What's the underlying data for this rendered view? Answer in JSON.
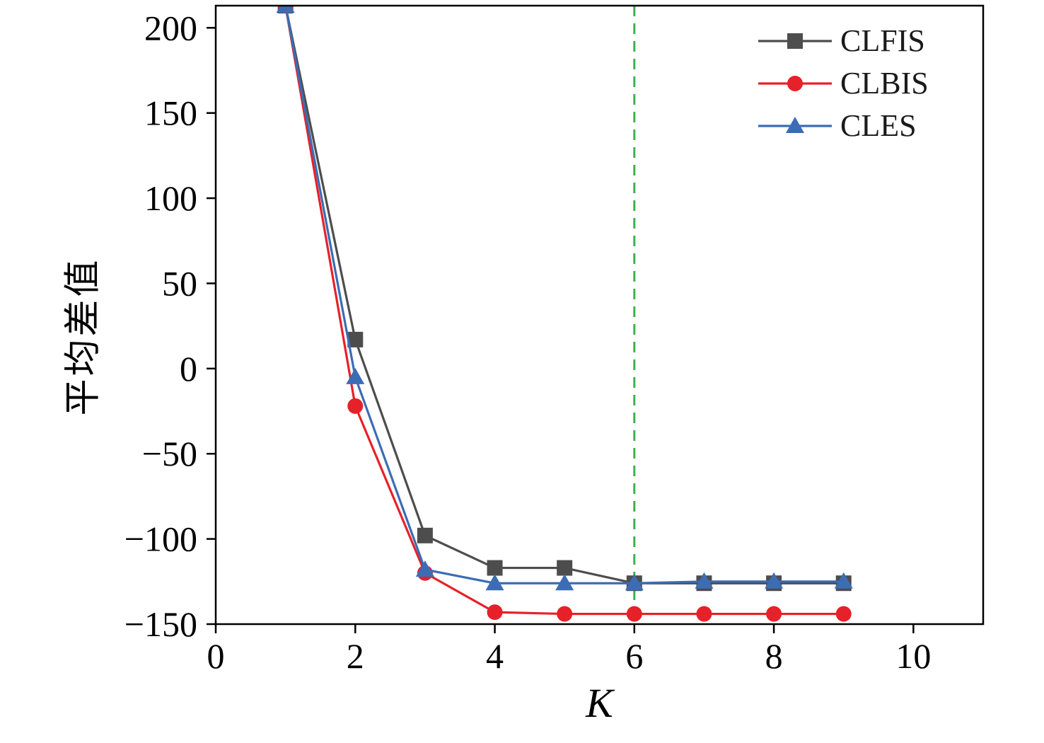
{
  "chart_data": {
    "type": "line",
    "title": "",
    "xlabel": "K",
    "ylabel": "平均差值",
    "xlim": [
      0,
      11
    ],
    "ylim": [
      -150,
      213
    ],
    "grid": false,
    "legend_position": "top-right",
    "x": [
      1,
      2,
      3,
      4,
      5,
      6,
      7,
      8,
      9
    ],
    "series": [
      {
        "name": "CLFIS",
        "color": "#4d4d4d",
        "marker": "square",
        "values": [
          213,
          17,
          -98,
          -117,
          -117,
          -126,
          -126,
          -126,
          -126
        ]
      },
      {
        "name": "CLBIS",
        "color": "#e62129",
        "marker": "circle",
        "values": [
          213,
          -22,
          -120,
          -143,
          -144,
          -144,
          -144,
          -144,
          -144
        ]
      },
      {
        "name": "CLES",
        "color": "#3c6cb4",
        "marker": "triangle",
        "values": [
          213,
          -5,
          -118,
          -126,
          -126,
          -126,
          -125,
          -125,
          -125
        ]
      }
    ],
    "vline": {
      "x": 6,
      "color": "#3bb44a",
      "style": "dashed"
    },
    "xticks": {
      "values": [
        0,
        2,
        4,
        6,
        8,
        10
      ],
      "labels": [
        "0",
        "2",
        "4",
        "6",
        "8",
        "10"
      ]
    },
    "yticks": {
      "values": [
        -150,
        -100,
        -50,
        0,
        50,
        100,
        150,
        200
      ],
      "labels": [
        "−150",
        "−100",
        "−50",
        "0",
        "50",
        "100",
        "150",
        "200"
      ]
    }
  }
}
